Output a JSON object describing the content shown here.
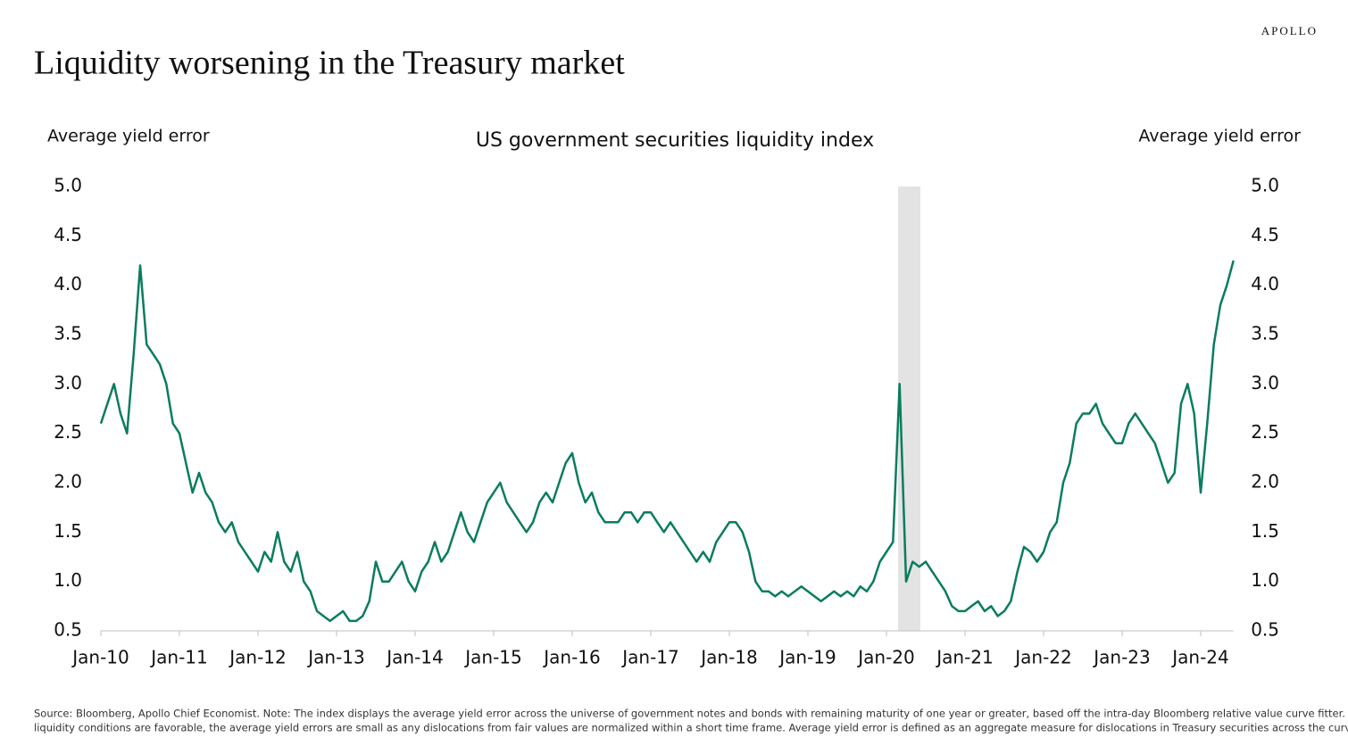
{
  "brand": "APOLLO",
  "headline": "Liquidity worsening in the Treasury market",
  "source_note": [
    "Source: Bloomberg, Apollo Chief Economist. Note: The index displays the average yield error across the universe of government notes and bonds with remaining maturity of one year or greater, based off the intra-day Bloomberg relative value curve fitter. When",
    "liquidity conditions are favorable, the average yield errors are small as any dislocations from fair values are normalized within a short time frame. Average yield error is defined as an aggregate measure for dislocations in Treasury securities across the curve."
  ],
  "chart_data": {
    "type": "line",
    "title": "US government securities liquidity index",
    "ylabel": "Average yield error",
    "y2label": "Average yield error",
    "categories": [
      "Jan-10",
      null,
      null,
      null,
      null,
      null,
      null,
      null,
      null,
      null,
      null,
      null,
      "Jan-11",
      null,
      null,
      null,
      null,
      null,
      null,
      null,
      null,
      null,
      null,
      null,
      "Jan-12",
      null,
      null,
      null,
      null,
      null,
      null,
      null,
      null,
      null,
      null,
      null,
      "Jan-13",
      null,
      null,
      null,
      null,
      null,
      null,
      null,
      null,
      null,
      null,
      null,
      "Jan-14",
      null,
      null,
      null,
      null,
      null,
      null,
      null,
      null,
      null,
      null,
      null,
      "Jan-15",
      null,
      null,
      null,
      null,
      null,
      null,
      null,
      null,
      null,
      null,
      null,
      "Jan-16",
      null,
      null,
      null,
      null,
      null,
      null,
      null,
      null,
      null,
      null,
      null,
      "Jan-17",
      null,
      null,
      null,
      null,
      null,
      null,
      null,
      null,
      null,
      null,
      null,
      "Jan-18",
      null,
      null,
      null,
      null,
      null,
      null,
      null,
      null,
      null,
      null,
      null,
      "Jan-19",
      null,
      null,
      null,
      null,
      null,
      null,
      null,
      null,
      null,
      null,
      null,
      "Jan-20",
      null,
      null,
      null,
      null,
      null,
      null,
      null,
      null,
      null,
      null,
      null,
      "Jan-21",
      null,
      null,
      null,
      null,
      null,
      null,
      null,
      null,
      null,
      null,
      null,
      "Jan-22",
      null,
      null,
      null,
      null,
      null,
      null,
      null,
      null,
      null,
      null,
      null,
      "Jan-23",
      null,
      null,
      null,
      null,
      null,
      null,
      null,
      null,
      null,
      null,
      null,
      "Jan-24",
      null,
      null,
      null,
      null,
      null
    ],
    "series": [
      {
        "name": "US government securities liquidity index",
        "color": "#0a7c5f",
        "values": [
          2.6,
          2.8,
          3.0,
          2.7,
          2.5,
          3.3,
          4.2,
          3.4,
          3.3,
          3.2,
          3.0,
          2.6,
          2.5,
          2.2,
          1.9,
          2.1,
          1.9,
          1.8,
          1.6,
          1.5,
          1.6,
          1.4,
          1.3,
          1.2,
          1.1,
          1.3,
          1.2,
          1.5,
          1.2,
          1.1,
          1.3,
          1.0,
          0.9,
          0.7,
          0.65,
          0.6,
          0.65,
          0.7,
          0.6,
          0.6,
          0.65,
          0.8,
          1.2,
          1.0,
          1.0,
          1.1,
          1.2,
          1.0,
          0.9,
          1.1,
          1.2,
          1.4,
          1.2,
          1.3,
          1.5,
          1.7,
          1.5,
          1.4,
          1.6,
          1.8,
          1.9,
          2.0,
          1.8,
          1.7,
          1.6,
          1.5,
          1.6,
          1.8,
          1.9,
          1.8,
          2.0,
          2.2,
          2.3,
          2.0,
          1.8,
          1.9,
          1.7,
          1.6,
          1.6,
          1.6,
          1.7,
          1.7,
          1.6,
          1.7,
          1.7,
          1.6,
          1.5,
          1.6,
          1.5,
          1.4,
          1.3,
          1.2,
          1.3,
          1.2,
          1.4,
          1.5,
          1.6,
          1.6,
          1.5,
          1.3,
          1.0,
          0.9,
          0.9,
          0.85,
          0.9,
          0.85,
          0.9,
          0.95,
          0.9,
          0.85,
          0.8,
          0.85,
          0.9,
          0.85,
          0.9,
          0.85,
          0.95,
          0.9,
          1.0,
          1.2,
          1.3,
          1.4,
          3.0,
          1.0,
          1.2,
          1.15,
          1.2,
          1.1,
          1.0,
          0.9,
          0.75,
          0.7,
          0.7,
          0.75,
          0.8,
          0.7,
          0.75,
          0.65,
          0.7,
          0.8,
          1.1,
          1.35,
          1.3,
          1.2,
          1.3,
          1.5,
          1.6,
          2.0,
          2.2,
          2.6,
          2.7,
          2.7,
          2.8,
          2.6,
          2.5,
          2.4,
          2.4,
          2.6,
          2.7,
          2.6,
          2.5,
          2.4,
          2.2,
          2.0,
          2.1,
          2.8,
          3.0,
          2.7,
          1.9,
          2.6,
          3.4,
          3.8,
          4.0,
          4.25
        ]
      }
    ],
    "ylim": [
      0.5,
      5.0
    ],
    "yticks": [
      {
        "value": 0.5,
        "label": "0.5"
      },
      {
        "value": 1,
        "label": "1.0"
      },
      {
        "value": 1.5,
        "label": "1.5"
      },
      {
        "value": 2,
        "label": "2.0"
      },
      {
        "value": 2.5,
        "label": "2.5"
      },
      {
        "value": 3,
        "label": "3.0"
      },
      {
        "value": 3.5,
        "label": "3.5"
      },
      {
        "value": 4,
        "label": "4.0"
      },
      {
        "value": 4.5,
        "label": "4.5"
      },
      {
        "value": 5,
        "label": "5.0"
      }
    ],
    "y2lim": [
      0.5,
      5.0
    ],
    "y2ticks": [
      {
        "value": 0.5,
        "label": "0.5"
      },
      {
        "value": 1,
        "label": "1.0"
      },
      {
        "value": 1.5,
        "label": "1.5"
      },
      {
        "value": 2,
        "label": "2.0"
      },
      {
        "value": 2.5,
        "label": "2.5"
      },
      {
        "value": 3,
        "label": "3.0"
      },
      {
        "value": 3.5,
        "label": "3.5"
      },
      {
        "value": 4,
        "label": "4.0"
      },
      {
        "value": 4.5,
        "label": "4.5"
      },
      {
        "value": 5,
        "label": "5.0"
      }
    ],
    "grid": false
  }
}
